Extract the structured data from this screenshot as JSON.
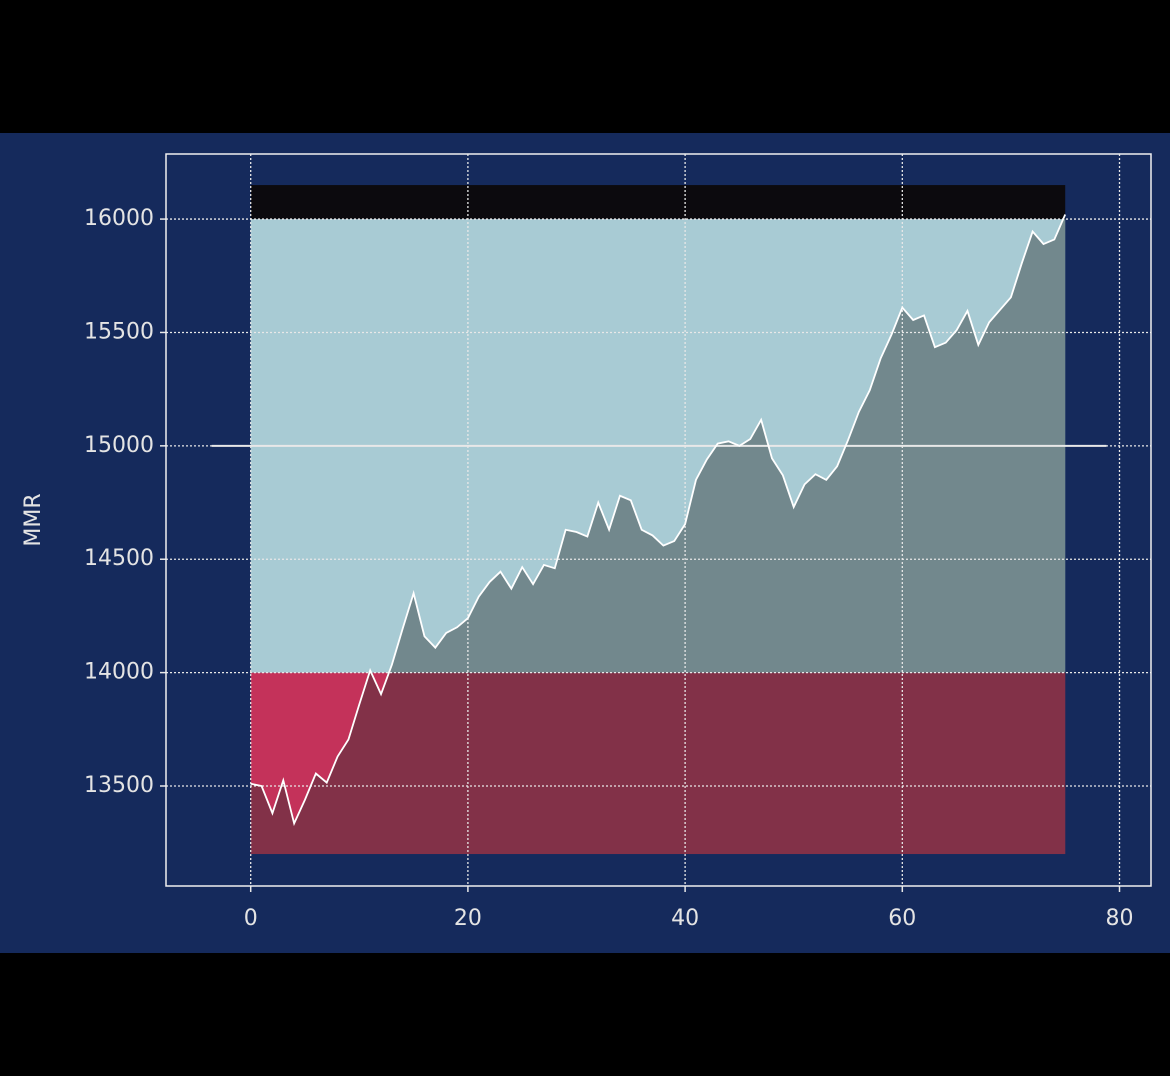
{
  "chart_data": {
    "type": "line",
    "ylabel": "MMR",
    "x": [
      0,
      1,
      2,
      3,
      4,
      5,
      6,
      7,
      8,
      9,
      10,
      11,
      12,
      13,
      14,
      15,
      16,
      17,
      18,
      19,
      20,
      21,
      22,
      23,
      24,
      25,
      26,
      27,
      28,
      29,
      30,
      31,
      32,
      33,
      34,
      35,
      36,
      37,
      38,
      39,
      40,
      41,
      42,
      43,
      44,
      45,
      46,
      47,
      48,
      49,
      50,
      51,
      52,
      53,
      54,
      55,
      56,
      57,
      58,
      59,
      60,
      61,
      62,
      63,
      64,
      65,
      66,
      67,
      68,
      69,
      70,
      71,
      72,
      73,
      74,
      75
    ],
    "series": [
      {
        "color": "#ffffff",
        "values": [
          13510,
          13500,
          13380,
          13525,
          13335,
          13440,
          13555,
          13515,
          13630,
          13705,
          13860,
          14010,
          13905,
          14035,
          14195,
          14350,
          14160,
          14110,
          14175,
          14200,
          14240,
          14335,
          14400,
          14445,
          14370,
          14465,
          14390,
          14475,
          14460,
          14630,
          14620,
          14600,
          14750,
          14630,
          14780,
          14760,
          14630,
          14605,
          14560,
          14580,
          14655,
          14850,
          14940,
          15010,
          15020,
          15000,
          15030,
          15115,
          14945,
          14870,
          14730,
          14830,
          14875,
          14850,
          14910,
          15025,
          15150,
          15245,
          15385,
          15490,
          15610,
          15555,
          15575,
          15435,
          15455,
          15510,
          15595,
          15445,
          15545,
          15600,
          15655,
          15805,
          15945,
          15890,
          15910,
          16020
        ]
      }
    ],
    "fill_to": 13200,
    "fill_color": "#2b3130",
    "bands": [
      {
        "y0": 13200,
        "y1": 14000,
        "xmin": 0,
        "xmax": 75,
        "color": "#c4325a"
      },
      {
        "y0": 14000,
        "y1": 16000,
        "xmin": 0,
        "xmax": 75,
        "color": "#a8cbd4"
      },
      {
        "y0": 16000,
        "y1": 16150,
        "xmin": 0,
        "xmax": 75,
        "color": "#0c0a0e"
      }
    ],
    "hline": {
      "y": 15000,
      "xmin": -3.6,
      "xmax": 78.8,
      "color": "#e8e8e8"
    },
    "xlim": [
      -7.8,
      82.9
    ],
    "ylim": [
      13059,
      16287
    ],
    "xticks": [
      0,
      20,
      40,
      60,
      80
    ],
    "yticks": [
      13500,
      14000,
      14500,
      15000,
      15500,
      16000
    ],
    "grid": true
  }
}
